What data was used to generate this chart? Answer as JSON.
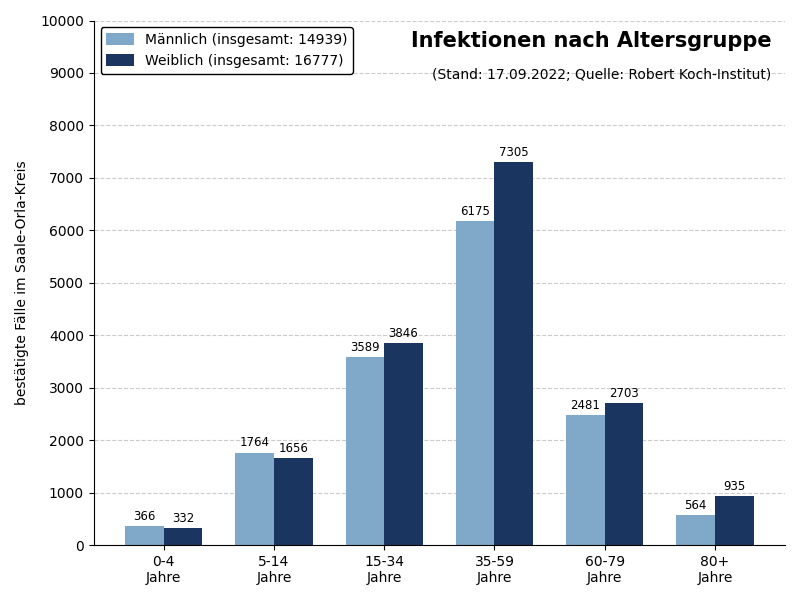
{
  "categories": [
    "0-4\nJahre",
    "5-14\nJahre",
    "15-34\nJahre",
    "35-59\nJahre",
    "60-79\nJahre",
    "80+\nJahre"
  ],
  "maennlich_values": [
    366,
    1764,
    3589,
    6175,
    2481,
    564
  ],
  "weiblich_values": [
    332,
    1656,
    3846,
    7305,
    2703,
    935
  ],
  "maennlich_color": "#7fa8c9",
  "weiblich_color": "#1a3660",
  "maennlich_label": "Männlich (insgesamt: 14939)",
  "weiblich_label": "Weiblich (insgesamt: 16777)",
  "title": "Infektionen nach Altersgruppe",
  "subtitle": "(Stand: 17.09.2022; Quelle: Robert Koch-Institut)",
  "ylabel": "bestätigte Fälle im Saale-Orla-Kreis",
  "ylim": [
    0,
    10000
  ],
  "yticks": [
    0,
    1000,
    2000,
    3000,
    4000,
    5000,
    6000,
    7000,
    8000,
    9000,
    10000
  ],
  "bar_width": 0.35,
  "background_color": "#ffffff",
  "grid_color": "#cccccc",
  "title_fontsize": 15,
  "subtitle_fontsize": 10,
  "label_fontsize": 10,
  "tick_fontsize": 10,
  "value_fontsize": 8.5,
  "legend_fontsize": 10,
  "ylabel_fontsize": 10
}
